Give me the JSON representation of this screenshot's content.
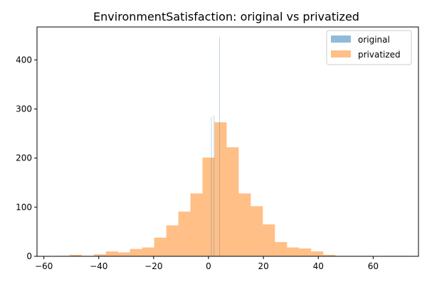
{
  "chart_data": {
    "type": "bar",
    "title": "EnvironmentSatisfaction: original vs privatized",
    "xlabel": "",
    "ylabel": "",
    "xlim": [
      -62.5,
      76.5
    ],
    "ylim": [
      0,
      467
    ],
    "xticks": [
      -60,
      -40,
      -20,
      0,
      20,
      40,
      60
    ],
    "yticks": [
      0,
      100,
      200,
      300,
      400
    ],
    "grid": false,
    "legend": "top-right",
    "colors": {
      "original": "#1f77b4",
      "privatized": "#ff7f0e"
    },
    "series": [
      {
        "name": "original",
        "bins": [
          {
            "x0": 0.97,
            "x1": 1.03,
            "value": 284
          },
          {
            "x0": 1.97,
            "x1": 2.03,
            "value": 287
          },
          {
            "x0": 2.97,
            "x1": 3.03,
            "value": 0
          },
          {
            "x0": 3.97,
            "x1": 4.03,
            "value": 446
          }
        ]
      },
      {
        "name": "privatized",
        "bins": [
          {
            "x0": -55.0,
            "x1": -50.6,
            "value": 1
          },
          {
            "x0": -50.6,
            "x1": -46.2,
            "value": 3
          },
          {
            "x0": -46.2,
            "x1": -41.8,
            "value": 1
          },
          {
            "x0": -41.8,
            "x1": -37.4,
            "value": 4
          },
          {
            "x0": -37.4,
            "x1": -33.0,
            "value": 10
          },
          {
            "x0": -33.0,
            "x1": -28.6,
            "value": 8
          },
          {
            "x0": -28.6,
            "x1": -24.2,
            "value": 15
          },
          {
            "x0": -24.2,
            "x1": -19.8,
            "value": 18
          },
          {
            "x0": -19.8,
            "x1": -15.4,
            "value": 38
          },
          {
            "x0": -15.4,
            "x1": -11.0,
            "value": 63
          },
          {
            "x0": -11.0,
            "x1": -6.6,
            "value": 91
          },
          {
            "x0": -6.6,
            "x1": -2.2,
            "value": 128
          },
          {
            "x0": -2.2,
            "x1": 2.2,
            "value": 201
          },
          {
            "x0": 2.2,
            "x1": 6.6,
            "value": 273
          },
          {
            "x0": 6.6,
            "x1": 11.0,
            "value": 222
          },
          {
            "x0": 11.0,
            "x1": 15.4,
            "value": 128
          },
          {
            "x0": 15.4,
            "x1": 19.8,
            "value": 102
          },
          {
            "x0": 19.8,
            "x1": 24.2,
            "value": 65
          },
          {
            "x0": 24.2,
            "x1": 28.6,
            "value": 29
          },
          {
            "x0": 28.6,
            "x1": 33.0,
            "value": 18
          },
          {
            "x0": 33.0,
            "x1": 37.4,
            "value": 16
          },
          {
            "x0": 37.4,
            "x1": 41.8,
            "value": 10
          },
          {
            "x0": 41.8,
            "x1": 46.2,
            "value": 3
          },
          {
            "x0": 46.2,
            "x1": 50.6,
            "value": 1
          },
          {
            "x0": 50.6,
            "x1": 55.0,
            "value": 1
          },
          {
            "x0": 55.0,
            "x1": 59.4,
            "value": 1
          },
          {
            "x0": 59.4,
            "x1": 63.8,
            "value": 0
          },
          {
            "x0": 63.8,
            "x1": 68.2,
            "value": 1
          },
          {
            "x0": 68.2,
            "x1": 72.6,
            "value": 1
          }
        ]
      }
    ]
  }
}
